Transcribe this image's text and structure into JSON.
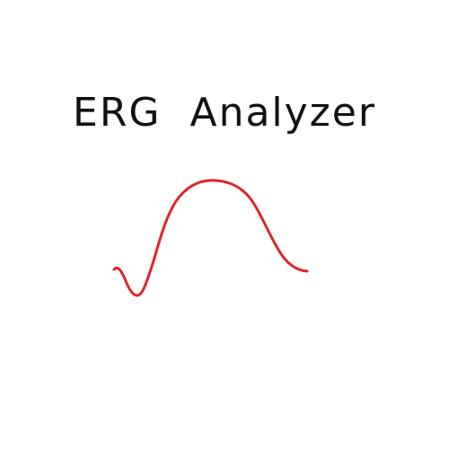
{
  "title": "ERG  Analyzer",
  "colors": {
    "background": "#ffffff",
    "text": "#111111",
    "waveform": "#e0252a"
  }
}
